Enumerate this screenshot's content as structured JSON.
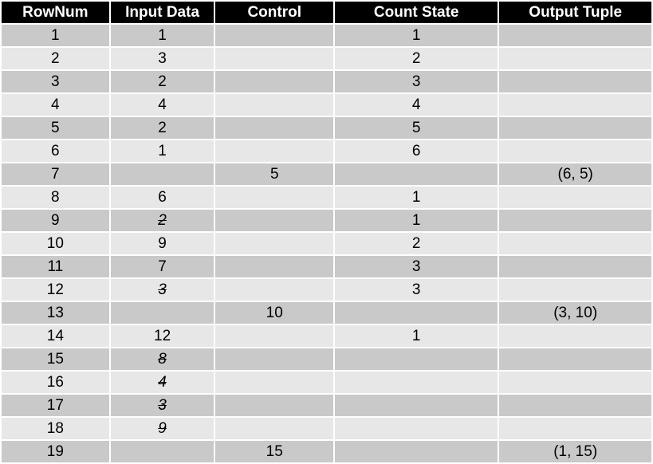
{
  "headers": [
    "RowNum",
    "Input Data",
    "Control",
    "Count State",
    "Output Tuple"
  ],
  "rows": [
    {
      "rownum": "1",
      "input": "1",
      "input_struck": false,
      "control": "",
      "count": "1",
      "output": ""
    },
    {
      "rownum": "2",
      "input": "3",
      "input_struck": false,
      "control": "",
      "count": "2",
      "output": ""
    },
    {
      "rownum": "3",
      "input": "2",
      "input_struck": false,
      "control": "",
      "count": "3",
      "output": ""
    },
    {
      "rownum": "4",
      "input": "4",
      "input_struck": false,
      "control": "",
      "count": "4",
      "output": ""
    },
    {
      "rownum": "5",
      "input": "2",
      "input_struck": false,
      "control": "",
      "count": "5",
      "output": ""
    },
    {
      "rownum": "6",
      "input": "1",
      "input_struck": false,
      "control": "",
      "count": "6",
      "output": ""
    },
    {
      "rownum": "7",
      "input": "",
      "input_struck": false,
      "control": "5",
      "count": "",
      "output": "(6, 5)"
    },
    {
      "rownum": "8",
      "input": "6",
      "input_struck": false,
      "control": "",
      "count": "1",
      "output": ""
    },
    {
      "rownum": "9",
      "input": "2",
      "input_struck": true,
      "control": "",
      "count": "1",
      "output": ""
    },
    {
      "rownum": "10",
      "input": "9",
      "input_struck": false,
      "control": "",
      "count": "2",
      "output": ""
    },
    {
      "rownum": "11",
      "input": "7",
      "input_struck": false,
      "control": "",
      "count": "3",
      "output": ""
    },
    {
      "rownum": "12",
      "input": "3",
      "input_struck": true,
      "control": "",
      "count": "3",
      "output": ""
    },
    {
      "rownum": "13",
      "input": "",
      "input_struck": false,
      "control": "10",
      "count": "",
      "output": "(3, 10)"
    },
    {
      "rownum": "14",
      "input": "12",
      "input_struck": false,
      "control": "",
      "count": "1",
      "output": ""
    },
    {
      "rownum": "15",
      "input": "8",
      "input_struck": true,
      "control": "",
      "count": "",
      "output": ""
    },
    {
      "rownum": "16",
      "input": "4",
      "input_struck": true,
      "control": "",
      "count": "",
      "output": ""
    },
    {
      "rownum": "17",
      "input": "3",
      "input_struck": true,
      "control": "",
      "count": "",
      "output": ""
    },
    {
      "rownum": "18",
      "input": "9",
      "input_struck": true,
      "control": "",
      "count": "",
      "output": ""
    },
    {
      "rownum": "19",
      "input": "",
      "input_struck": false,
      "control": "15",
      "count": "",
      "output": "(1, 15)"
    }
  ],
  "colors": {
    "header_bg": "#000000",
    "header_text": "#ffffff",
    "row_dark": "#c9c9c9",
    "row_light": "#e7e7e7"
  }
}
